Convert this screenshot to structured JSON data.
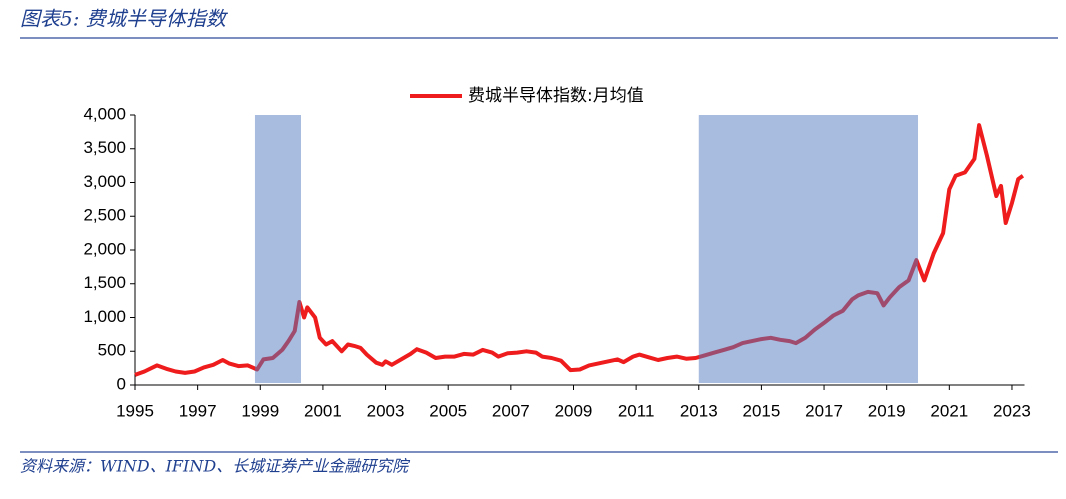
{
  "chart_data": {
    "type": "line",
    "title": "图表5:  费城半导体指数",
    "source": "资料来源：WIND、IFIND、长城证券产业金融研究院",
    "x": [
      1995.0,
      1995.3,
      1995.7,
      1996.0,
      1996.3,
      1996.6,
      1996.9,
      1997.2,
      1997.5,
      1997.8,
      1998.0,
      1998.3,
      1998.6,
      1998.9,
      1999.1,
      1999.4,
      1999.7,
      1999.9,
      2000.1,
      2000.25,
      2000.4,
      2000.5,
      2000.75,
      2000.9,
      2001.1,
      2001.3,
      2001.6,
      2001.8,
      2002.0,
      2002.2,
      2002.4,
      2002.7,
      2002.9,
      2003.0,
      2003.2,
      2003.5,
      2003.8,
      2004.0,
      2004.3,
      2004.6,
      2004.9,
      2005.2,
      2005.5,
      2005.8,
      2006.1,
      2006.4,
      2006.6,
      2006.9,
      2007.2,
      2007.5,
      2007.8,
      2008.0,
      2008.3,
      2008.6,
      2008.9,
      2009.2,
      2009.5,
      2009.8,
      2010.1,
      2010.4,
      2010.6,
      2010.9,
      2011.1,
      2011.4,
      2011.7,
      2012.0,
      2012.3,
      2012.6,
      2012.9,
      2013.2,
      2013.5,
      2013.8,
      2014.1,
      2014.4,
      2014.7,
      2015.0,
      2015.3,
      2015.6,
      2015.9,
      2016.1,
      2016.4,
      2016.7,
      2017.0,
      2017.3,
      2017.6,
      2017.9,
      2018.1,
      2018.4,
      2018.7,
      2018.9,
      2019.1,
      2019.4,
      2019.7,
      2019.95,
      2020.2,
      2020.5,
      2020.8,
      2021.0,
      2021.2,
      2021.5,
      2021.8,
      2021.95,
      2022.2,
      2022.5,
      2022.65,
      2022.8,
      2023.0,
      2023.2,
      2023.35
    ],
    "series": [
      {
        "name": "费城半导体指数:月均值",
        "color": "#ee1c1c",
        "values": [
          150,
          200,
          290,
          240,
          200,
          180,
          200,
          260,
          300,
          370,
          320,
          280,
          290,
          230,
          380,
          400,
          520,
          650,
          800,
          1230,
          1000,
          1150,
          1000,
          700,
          600,
          650,
          500,
          600,
          580,
          550,
          450,
          330,
          300,
          350,
          300,
          380,
          460,
          530,
          480,
          400,
          420,
          420,
          460,
          450,
          520,
          480,
          420,
          470,
          480,
          500,
          480,
          420,
          400,
          360,
          220,
          230,
          290,
          320,
          350,
          380,
          340,
          420,
          450,
          410,
          370,
          400,
          420,
          390,
          400,
          440,
          480,
          520,
          560,
          620,
          650,
          680,
          700,
          670,
          650,
          620,
          700,
          820,
          920,
          1030,
          1100,
          1270,
          1330,
          1380,
          1360,
          1180,
          1300,
          1450,
          1550,
          1850,
          1550,
          1950,
          2250,
          2900,
          3100,
          3150,
          3350,
          3850,
          3400,
          2800,
          2950,
          2400,
          2700,
          3050,
          3100
        ]
      }
    ],
    "shaded_regions": [
      [
        1998.83,
        2000.3
      ],
      [
        2013.0,
        2020.0
      ]
    ],
    "shade_color": "#4f7ac0",
    "xlim": [
      1995,
      2023.4
    ],
    "xticks": [
      1995,
      1997,
      1999,
      2001,
      2003,
      2005,
      2007,
      2009,
      2011,
      2013,
      2015,
      2017,
      2019,
      2021,
      2023
    ],
    "ylim": [
      0,
      4000
    ],
    "yticks": [
      0,
      500,
      {
        "value": 1000,
        "label": "1,000"
      },
      {
        "value": 1500,
        "label": "1,500"
      },
      {
        "value": 2000,
        "label": "2,000"
      },
      {
        "value": 2500,
        "label": "2,500"
      },
      {
        "value": 3000,
        "label": "3,000"
      },
      {
        "value": 3500,
        "label": "3,500"
      },
      {
        "value": 4000,
        "label": "4,000"
      }
    ],
    "legend": "top"
  }
}
